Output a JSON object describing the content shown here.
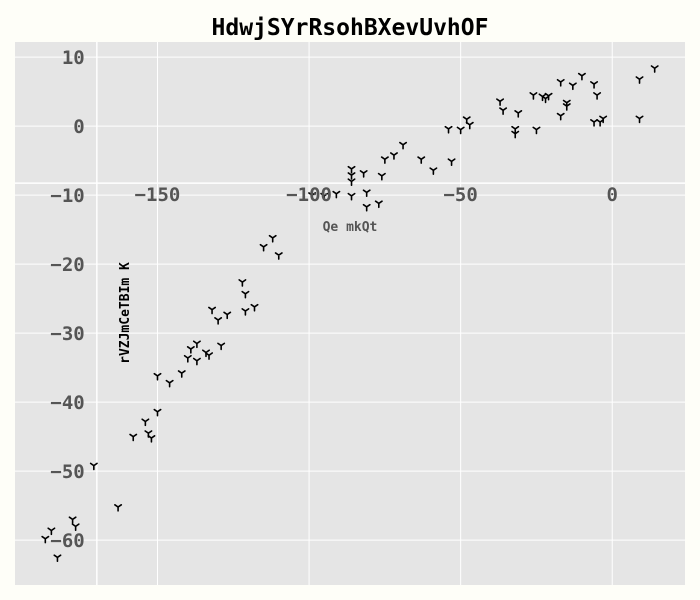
{
  "chart_data": {
    "type": "scatter",
    "title": "HdwjSYrRsohBXevUvhOF",
    "xlabel": "Qe mkQt",
    "ylabel": "rVZJmCeTBIm K",
    "xlim": [
      -197,
      24
    ],
    "ylim": [
      -66.5,
      12.2
    ],
    "x_ticks": [
      -150,
      -100,
      -50,
      0
    ],
    "x_tick_labels": [
      "−150",
      "−100",
      "−50",
      "0"
    ],
    "y_ticks": [
      10,
      0,
      -10,
      -20,
      -30,
      -40,
      -50,
      -60
    ],
    "y_tick_labels": [
      "10",
      "0",
      "−10",
      "−20",
      "−30",
      "−40",
      "−50",
      "−60"
    ],
    "grid": true,
    "marker": "tri_down",
    "colors": {
      "background": "#fefef8",
      "plot_area": "#e5e5e5",
      "grid": "#ffffff",
      "marker": "#000000",
      "tick_label": "#555555",
      "xlabel": "#555555",
      "ylabel": "#000000",
      "title": "#000000"
    },
    "points": [
      [
        -187,
        -59.8
      ],
      [
        -185,
        -58.6
      ],
      [
        -183,
        -62.5
      ],
      [
        -178,
        -57.0
      ],
      [
        -177,
        -58.0
      ],
      [
        -171,
        -49.2
      ],
      [
        -163,
        -55.2
      ],
      [
        -158,
        -45.0
      ],
      [
        -154,
        -42.8
      ],
      [
        -153,
        -44.5
      ],
      [
        -152,
        -45.2
      ],
      [
        -150,
        -36.2
      ],
      [
        -150,
        -41.4
      ],
      [
        -146,
        -37.2
      ],
      [
        -142,
        -35.8
      ],
      [
        -140,
        -33.6
      ],
      [
        -139,
        -32.3
      ],
      [
        -137,
        -34.0
      ],
      [
        -137,
        -31.5
      ],
      [
        -134,
        -32.8
      ],
      [
        -133,
        -33.2
      ],
      [
        -132,
        -26.6
      ],
      [
        -130,
        -28.1
      ],
      [
        -129,
        -31.8
      ],
      [
        -127,
        -27.3
      ],
      [
        -122,
        -22.6
      ],
      [
        -121,
        -24.3
      ],
      [
        -121,
        -26.8
      ],
      [
        -118,
        -26.2
      ],
      [
        -115,
        -17.5
      ],
      [
        -112,
        -16.2
      ],
      [
        -110,
        -18.7
      ],
      [
        -99,
        -10.0
      ],
      [
        -95,
        -10.1
      ],
      [
        -91,
        -9.8
      ],
      [
        -86,
        -10.1
      ],
      [
        -86,
        -8.0
      ],
      [
        -86,
        -7.1
      ],
      [
        -86,
        -6.2
      ],
      [
        -82,
        -6.8
      ],
      [
        -81,
        -11.7
      ],
      [
        -81,
        -9.6
      ],
      [
        -77,
        -11.2
      ],
      [
        -76,
        -7.2
      ],
      [
        -75,
        -4.8
      ],
      [
        -72,
        -4.2
      ],
      [
        -69,
        -2.7
      ],
      [
        -63,
        -4.8
      ],
      [
        -59,
        -6.4
      ],
      [
        -54,
        -0.4
      ],
      [
        -53,
        -5.1
      ],
      [
        -50,
        -0.5
      ],
      [
        -48,
        1.0
      ],
      [
        -47,
        0.2
      ],
      [
        -37,
        3.6
      ],
      [
        -36,
        2.3
      ],
      [
        -32,
        -0.4
      ],
      [
        -32,
        -1.1
      ],
      [
        -31,
        1.9
      ],
      [
        -26,
        4.5
      ],
      [
        -25,
        -0.5
      ],
      [
        -23,
        4.3
      ],
      [
        -22,
        4.0
      ],
      [
        -21,
        4.4
      ],
      [
        -17,
        6.4
      ],
      [
        -17,
        1.5
      ],
      [
        -15,
        3.4
      ],
      [
        -15,
        2.9
      ],
      [
        -13,
        5.9
      ],
      [
        -10,
        7.3
      ],
      [
        -6,
        6.1
      ],
      [
        -6,
        0.6
      ],
      [
        -4,
        0.6
      ],
      [
        -5,
        4.5
      ],
      [
        -3,
        1.1
      ],
      [
        9,
        6.8
      ],
      [
        9,
        1.1
      ],
      [
        14,
        8.4
      ]
    ]
  }
}
